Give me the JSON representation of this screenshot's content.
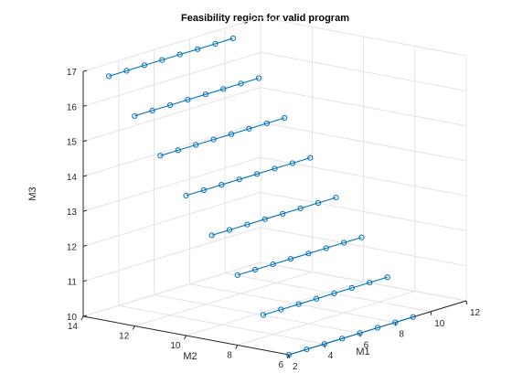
{
  "chart_data": {
    "type": "line3",
    "title": "Feasibility region for valid program",
    "xlabel": "M1",
    "ylabel": "M2",
    "zlabel": "M3",
    "xlim": [
      2,
      12
    ],
    "ylim": [
      6,
      14
    ],
    "zlim": [
      10,
      17
    ],
    "xticks": [
      "2",
      "4",
      "6",
      "8",
      "10",
      "12"
    ],
    "yticks": [
      "6",
      "8",
      "10",
      "12",
      "14"
    ],
    "zticks": [
      "10",
      "11",
      "12",
      "13",
      "14",
      "15",
      "16",
      "17"
    ],
    "grid": true,
    "line_color": "#0072bd",
    "marker": "circle",
    "series": [
      {
        "z": 10,
        "x": [
          2,
          3,
          4,
          5,
          6,
          7,
          8,
          9
        ],
        "y": [
          6,
          6,
          6,
          6,
          6,
          6,
          6,
          6
        ]
      },
      {
        "z": 11,
        "x": [
          2,
          3,
          4,
          5,
          6,
          7,
          8,
          9
        ],
        "y": [
          7,
          7,
          7,
          7,
          7,
          7,
          7,
          7
        ]
      },
      {
        "z": 12,
        "x": [
          2,
          3,
          4,
          5,
          6,
          7,
          8,
          9
        ],
        "y": [
          8,
          8,
          8,
          8,
          8,
          8,
          8,
          8
        ]
      },
      {
        "z": 13,
        "x": [
          2,
          3,
          4,
          5,
          6,
          7,
          8,
          9
        ],
        "y": [
          9,
          9,
          9,
          9,
          9,
          9,
          9,
          9
        ]
      },
      {
        "z": 14,
        "x": [
          2,
          3,
          4,
          5,
          6,
          7,
          8,
          9
        ],
        "y": [
          10,
          10,
          10,
          10,
          10,
          10,
          10,
          10
        ]
      },
      {
        "z": 15,
        "x": [
          2,
          3,
          4,
          5,
          6,
          7,
          8,
          9
        ],
        "y": [
          11,
          11,
          11,
          11,
          11,
          11,
          11,
          11
        ]
      },
      {
        "z": 16,
        "x": [
          2,
          3,
          4,
          5,
          6,
          7,
          8,
          9
        ],
        "y": [
          12,
          12,
          12,
          12,
          12,
          12,
          12,
          12
        ]
      },
      {
        "z": 17,
        "x": [
          2,
          3,
          4,
          5,
          6,
          7,
          8,
          9
        ],
        "y": [
          13,
          13,
          13,
          13,
          13,
          13,
          13,
          13
        ]
      }
    ]
  }
}
